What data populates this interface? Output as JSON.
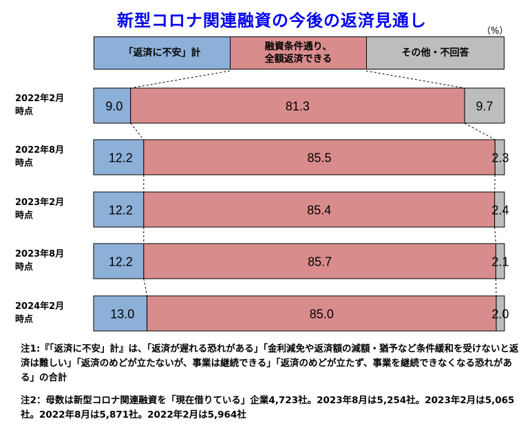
{
  "title": "新型コロナ関連融資の今後の返済見通し",
  "unit": "（%）",
  "colors": {
    "anxiety": "#8db0d8",
    "full": "#d98c8c",
    "other": "#bdbdbd",
    "title": "#0000ee"
  },
  "chart_data": {
    "type": "bar",
    "orientation": "horizontal-stacked-100",
    "categories": [
      [
        "2022年2月",
        "時点"
      ],
      [
        "2022年8月",
        "時点"
      ],
      [
        "2023年2月",
        "時点"
      ],
      [
        "2023年8月",
        "時点"
      ],
      [
        "2024年2月",
        "時点"
      ]
    ],
    "series": [
      {
        "name": "「返済に不安」計",
        "values": [
          9.0,
          12.2,
          12.2,
          12.2,
          13.0
        ]
      },
      {
        "name": "融資条件通り、全額返済できる",
        "values": [
          81.3,
          85.5,
          85.4,
          85.7,
          85.0
        ]
      },
      {
        "name": "その他・不回答",
        "values": [
          9.7,
          2.3,
          2.4,
          2.1,
          2.0
        ]
      }
    ],
    "value_labels": [
      [
        "9.0",
        "81.3",
        "9.7"
      ],
      [
        "12.2",
        "85.5",
        "2.3"
      ],
      [
        "12.2",
        "85.4",
        "2.4"
      ],
      [
        "12.2",
        "85.7",
        "2.1"
      ],
      [
        "13.0",
        "85.0",
        "2.0"
      ]
    ],
    "legend_position": "top",
    "grid": false,
    "xlim": [
      0,
      100
    ]
  },
  "legend": {
    "anxiety": [
      "「返済に不安」計"
    ],
    "full": [
      "融資条件通り、",
      "全額返済できる"
    ],
    "other": [
      "その他・不回答"
    ]
  },
  "notes": {
    "note1": "注1:『「返済に不安」計』は、「返済が遅れる恐れがある」「金利減免や返済額の減額・猶予など条件緩和を受けないと返済は難しい」「返済のめどが立たないが、事業は継続できる」「返済のめどが立たず、事業を継続できなくなる恐れがある」の合計",
    "note2": "注2：母数は新型コロナ関連融資を「現在借りている」企業4,723社。2023年8月は5,254社。2023年2月は5,065社。2022年8月は5,871社。2022年2月は5,964社"
  }
}
